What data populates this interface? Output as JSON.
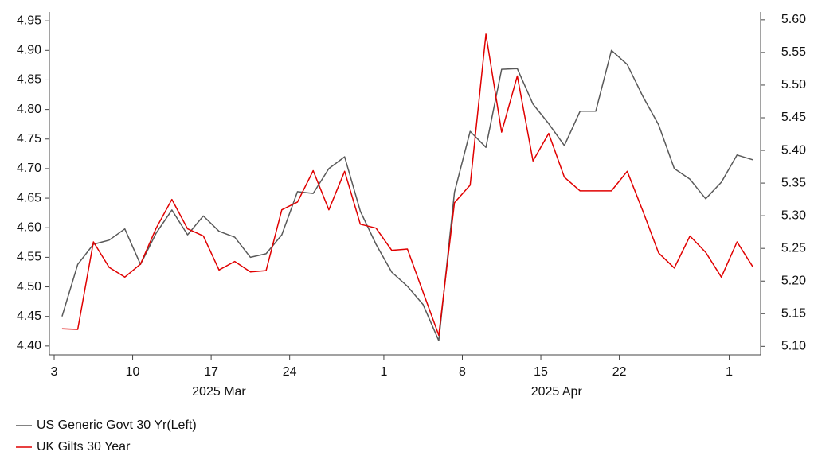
{
  "chart_data": {
    "type": "line",
    "x": [
      "2025-03-03",
      "2025-03-04",
      "2025-03-05",
      "2025-03-06",
      "2025-03-07",
      "2025-03-10",
      "2025-03-11",
      "2025-03-12",
      "2025-03-13",
      "2025-03-14",
      "2025-03-17",
      "2025-03-18",
      "2025-03-19",
      "2025-03-20",
      "2025-03-21",
      "2025-03-24",
      "2025-03-25",
      "2025-03-26",
      "2025-03-27",
      "2025-03-28",
      "2025-03-31",
      "2025-04-01",
      "2025-04-02",
      "2025-04-03",
      "2025-04-04",
      "2025-04-07",
      "2025-04-08",
      "2025-04-09",
      "2025-04-10",
      "2025-04-11",
      "2025-04-14",
      "2025-04-15",
      "2025-04-16",
      "2025-04-17",
      "2025-04-18",
      "2025-04-21",
      "2025-04-22",
      "2025-04-23",
      "2025-04-24",
      "2025-04-25",
      "2025-04-28",
      "2025-04-29",
      "2025-04-30",
      "2025-05-01",
      "2025-05-02"
    ],
    "series": [
      {
        "name": "US Generic Govt 30 Yr(Left)",
        "color": "#595959",
        "axis": "y",
        "values": [
          4.45,
          4.538,
          4.572,
          4.579,
          4.598,
          4.538,
          4.591,
          4.63,
          4.588,
          4.62,
          4.594,
          4.584,
          4.55,
          4.556,
          4.588,
          4.661,
          4.658,
          4.7,
          4.72,
          4.628,
          4.572,
          4.525,
          4.501,
          4.47,
          4.409,
          4.66,
          4.763,
          4.736,
          4.868,
          4.869,
          4.809,
          4.776,
          4.739,
          4.797,
          4.797,
          4.9,
          4.876,
          4.822,
          4.774,
          4.7,
          4.682,
          4.649,
          4.677,
          4.723,
          4.715
        ]
      },
      {
        "name": "UK Gilts 30 Year",
        "color": "#e00000",
        "axis": "y2",
        "values": [
          5.127,
          5.126,
          5.26,
          5.221,
          5.206,
          5.226,
          5.281,
          5.325,
          5.28,
          5.269,
          5.217,
          5.23,
          5.214,
          5.216,
          5.309,
          5.321,
          5.369,
          5.309,
          5.368,
          5.287,
          5.281,
          5.247,
          5.249,
          5.183,
          5.117,
          5.32,
          5.347,
          5.578,
          5.428,
          5.514,
          5.384,
          5.426,
          5.359,
          5.338,
          5.338,
          5.338,
          5.368,
          5.307,
          5.243,
          5.22,
          5.269,
          5.244,
          5.206,
          5.26,
          5.222
        ]
      }
    ],
    "xlim": [
      "2025-03-03",
      "2025-05-02"
    ],
    "xticks": [
      {
        "value": "2025-03-03",
        "label": "3"
      },
      {
        "value": "2025-03-10",
        "label": "10"
      },
      {
        "value": "2025-03-17",
        "label": "17"
      },
      {
        "value": "2025-03-24",
        "label": "24"
      },
      {
        "value": "2025-04-01",
        "label": "1"
      },
      {
        "value": "2025-04-08",
        "label": "8"
      },
      {
        "value": "2025-04-15",
        "label": "15"
      },
      {
        "value": "2025-04-22",
        "label": "22"
      },
      {
        "value": "2025-05-01",
        "label": "1"
      }
    ],
    "x_groups": [
      {
        "value": "2025-03-01",
        "label": "2025 Mar"
      },
      {
        "value": "2025-04-01",
        "label": "2025 Apr"
      }
    ],
    "ylim": [
      4.385,
      4.965
    ],
    "yticks": [
      {
        "value": 4.4,
        "label": "4.40"
      },
      4.45,
      {
        "value": 4.5,
        "label": "4.50"
      },
      4.55,
      {
        "value": 4.6,
        "label": "4.60"
      },
      4.65,
      {
        "value": 4.7,
        "label": "4.70"
      },
      4.75,
      {
        "value": 4.8,
        "label": "4.80"
      },
      4.85,
      {
        "value": 4.9,
        "label": "4.90"
      },
      4.95
    ],
    "y2lim": [
      5.087,
      5.612
    ],
    "y2ticks": [
      {
        "value": 5.1,
        "label": "5.10"
      },
      5.15,
      {
        "value": 5.2,
        "label": "5.20"
      },
      5.25,
      {
        "value": 5.3,
        "label": "5.30"
      },
      5.35,
      {
        "value": 5.4,
        "label": "5.40"
      },
      5.45,
      {
        "value": 5.5,
        "label": "5.50"
      },
      5.55,
      {
        "value": 5.6,
        "label": "5.60"
      }
    ],
    "grid": false
  }
}
